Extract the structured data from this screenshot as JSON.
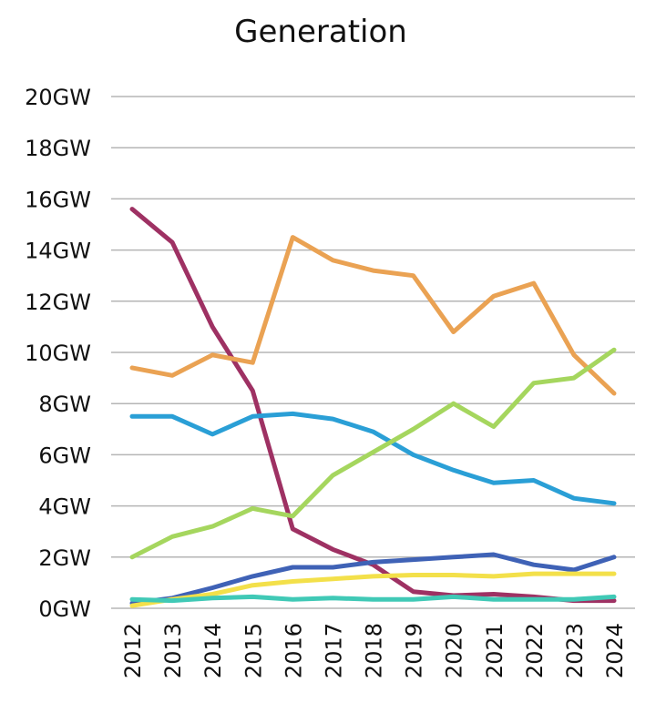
{
  "chart_data": {
    "type": "line",
    "title": "Generation",
    "xlabel": "",
    "ylabel": "",
    "x": [
      "2012",
      "2013",
      "2014",
      "2015",
      "2016",
      "2017",
      "2018",
      "2019",
      "2020",
      "2021",
      "2022",
      "2023",
      "2024"
    ],
    "ylim": [
      0,
      20
    ],
    "yticks": [
      "0GW",
      "2GW",
      "4GW",
      "6GW",
      "8GW",
      "10GW",
      "12GW",
      "14GW",
      "16GW",
      "18GW",
      "20GW"
    ],
    "grid": true,
    "legend": "none",
    "series": [
      {
        "color": "#9e3163",
        "values": [
          15.6,
          14.3,
          11.0,
          8.5,
          3.1,
          2.3,
          1.7,
          0.65,
          0.5,
          0.55,
          0.45,
          0.3,
          0.3
        ]
      },
      {
        "color": "#eaa253",
        "values": [
          9.4,
          9.1,
          9.9,
          9.6,
          14.5,
          13.6,
          13.2,
          13.0,
          10.8,
          12.2,
          12.7,
          9.9,
          8.4
        ]
      },
      {
        "color": "#2a9fd6",
        "values": [
          7.5,
          7.5,
          6.8,
          7.5,
          7.6,
          7.4,
          6.9,
          6.0,
          5.4,
          4.9,
          5.0,
          4.3,
          4.1
        ]
      },
      {
        "color": "#a5d65e",
        "values": [
          2.0,
          2.8,
          3.2,
          3.9,
          3.6,
          5.2,
          6.1,
          7.0,
          8.0,
          7.1,
          8.8,
          9.0,
          10.1
        ]
      },
      {
        "color": "#3f62b6",
        "values": [
          0.2,
          0.4,
          0.8,
          1.25,
          1.6,
          1.6,
          1.8,
          1.9,
          2.0,
          2.1,
          1.7,
          1.5,
          2.0
        ]
      },
      {
        "color": "#f3e04a",
        "values": [
          0.1,
          0.35,
          0.55,
          0.9,
          1.05,
          1.15,
          1.25,
          1.3,
          1.3,
          1.25,
          1.35,
          1.35,
          1.35
        ]
      },
      {
        "color": "#40c9b6",
        "values": [
          0.35,
          0.3,
          0.4,
          0.45,
          0.35,
          0.4,
          0.35,
          0.35,
          0.45,
          0.35,
          0.35,
          0.35,
          0.45
        ]
      }
    ]
  }
}
